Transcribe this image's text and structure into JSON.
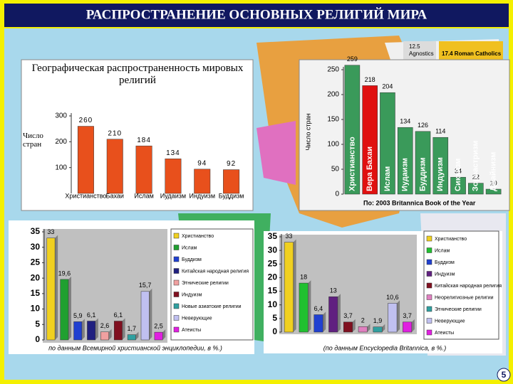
{
  "title": "РАСПРОСТРАНЕНИЕ ОСНОВНЫХ РЕЛИГИЙ МИРА",
  "page_number": "5",
  "background_labels": [
    "12.5",
    "Agnostics",
    "17.4 Roman Catholics"
  ],
  "chart_data": [
    {
      "type": "bar",
      "title": "Географическая распространенность мировых религий",
      "ylabel": "Число стран",
      "categories": [
        "Христианство",
        "Бахаи",
        "Ислам",
        "Иудаизм",
        "Индуизм",
        "Буддизм"
      ],
      "values": [
        260,
        210,
        184,
        134,
        94,
        92
      ],
      "colors": [
        "#e8501c",
        "#e8501c",
        "#e8501c",
        "#e8501c",
        "#e8501c",
        "#e8501c"
      ],
      "ylim": [
        0,
        300
      ],
      "yticks": [
        100,
        200,
        300
      ]
    },
    {
      "type": "bar",
      "ylabel": "Число стран",
      "source": "По: 2003 Britannica Book of the Year",
      "categories": [
        "Христианство",
        "Вера Бахаи",
        "Ислам",
        "Иудаизм",
        "Буддизм",
        "Индуизм",
        "Сикхизм",
        "Зороастризм",
        "Джайнизм"
      ],
      "values": [
        259,
        218,
        204,
        134,
        126,
        114,
        34,
        22,
        10
      ],
      "colors": [
        "#3a9a5a",
        "#e01010",
        "#3a9a5a",
        "#3a9a5a",
        "#3a9a5a",
        "#3a9a5a",
        "#3a9a5a",
        "#3a9a5a",
        "#3a9a5a"
      ],
      "ylim": [
        0,
        250
      ],
      "yticks": [
        0,
        50,
        100,
        150,
        200,
        250
      ]
    },
    {
      "type": "bar",
      "source": "по данным Всемирной христианской энциклопедии, в %.)",
      "legend": [
        "Христианство",
        "Ислам",
        "Буддизм",
        "Китайская народная религия",
        "Этнические религии",
        "Индуизм",
        "Новые азиатские религии",
        "Неверующие",
        "Атеисты"
      ],
      "values": [
        33,
        19.6,
        5.9,
        6.1,
        2.6,
        6.1,
        1.7,
        15.7,
        2.5
      ],
      "value_labels": [
        "33",
        "19,6",
        "5,9",
        "6,1",
        "2,6",
        "6,1",
        "1,7",
        "15,7",
        "2,5"
      ],
      "colors": [
        "#f0d020",
        "#20a030",
        "#2040d0",
        "#202080",
        "#f0a0a0",
        "#801020",
        "#30a0a0",
        "#c0c0f0",
        "#e020e0"
      ],
      "ylim": [
        0,
        35
      ],
      "yticks": [
        0,
        5,
        10,
        15,
        20,
        25,
        30,
        35
      ]
    },
    {
      "type": "bar",
      "source": "(по данным Encyclopedia Britannica, в %.)",
      "legend": [
        "Христианство",
        "Ислам",
        "Буддизм",
        "Индуизм",
        "Китайская народная религия",
        "Неорелигиозные религии",
        "Этнические религии",
        "Неверующие",
        "Атеисты"
      ],
      "values": [
        33,
        18,
        6.4,
        13,
        3.7,
        2,
        1.9,
        10.6,
        3.7
      ],
      "value_labels": [
        "33",
        "18",
        "6,4",
        "13",
        "3,7",
        "2",
        "1,9",
        "10,6",
        "3,7"
      ],
      "colors": [
        "#f0d020",
        "#20c030",
        "#2040d0",
        "#602080",
        "#801020",
        "#e080c0",
        "#30a0a0",
        "#c0c0f0",
        "#e020e0"
      ],
      "ylim": [
        0,
        35
      ],
      "yticks": [
        0,
        5,
        10,
        15,
        20,
        25,
        30,
        35
      ]
    }
  ]
}
